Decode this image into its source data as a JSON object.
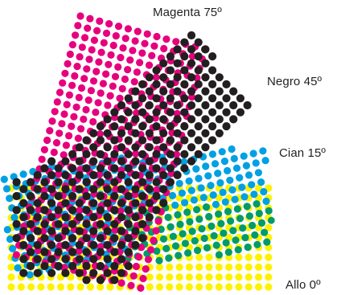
{
  "screens": [
    {
      "name": "Magenta",
      "angle_label": "Magenta 75º",
      "angle_deg": 75,
      "color": "#e6007e"
    },
    {
      "name": "Negro",
      "angle_label": "Negro 45º",
      "angle_deg": 45,
      "color": "#231f20"
    },
    {
      "name": "Cian",
      "angle_label": "Cian 15º",
      "angle_deg": 15,
      "color": "#00a0e3"
    },
    {
      "name": "Allo",
      "angle_label": "Allo 0º",
      "angle_deg": 0,
      "color": "#fff200"
    }
  ],
  "overlap_color": "#009a6b"
}
